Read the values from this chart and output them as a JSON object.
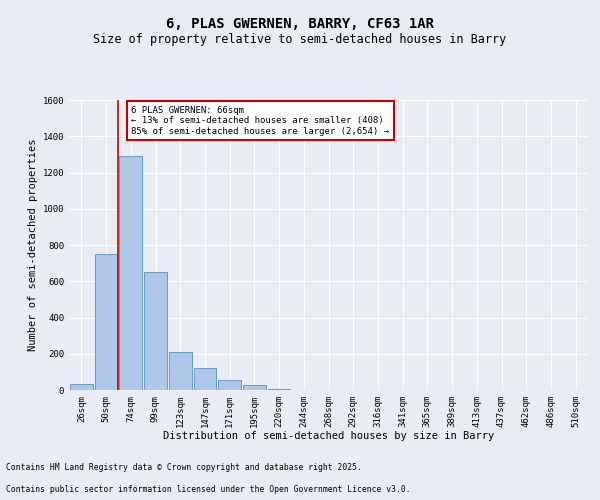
{
  "title": "6, PLAS GWERNEN, BARRY, CF63 1AR",
  "subtitle": "Size of property relative to semi-detached houses in Barry",
  "xlabel": "Distribution of semi-detached houses by size in Barry",
  "ylabel": "Number of semi-detached properties",
  "categories": [
    "26sqm",
    "50sqm",
    "74sqm",
    "99sqm",
    "123sqm",
    "147sqm",
    "171sqm",
    "195sqm",
    "220sqm",
    "244sqm",
    "268sqm",
    "292sqm",
    "316sqm",
    "341sqm",
    "365sqm",
    "389sqm",
    "413sqm",
    "437sqm",
    "462sqm",
    "486sqm",
    "510sqm"
  ],
  "values": [
    35,
    750,
    1290,
    650,
    210,
    120,
    55,
    25,
    5,
    0,
    0,
    0,
    0,
    0,
    0,
    0,
    0,
    0,
    0,
    0,
    0
  ],
  "bar_color": "#aec6e8",
  "bar_edge_color": "#5a8fc0",
  "vline_x_index": 2,
  "vline_color": "#cc0000",
  "annotation_title": "6 PLAS GWERNEN: 66sqm",
  "annotation_line1": "← 13% of semi-detached houses are smaller (408)",
  "annotation_line2": "85% of semi-detached houses are larger (2,654) →",
  "annotation_box_color": "#cc0000",
  "ylim": [
    0,
    1600
  ],
  "yticks": [
    0,
    200,
    400,
    600,
    800,
    1000,
    1200,
    1400,
    1600
  ],
  "footer_line1": "Contains HM Land Registry data © Crown copyright and database right 2025.",
  "footer_line2": "Contains public sector information licensed under the Open Government Licence v3.0.",
  "bg_color": "#eaecf4",
  "plot_bg_color": "#eaecf4",
  "title_fontsize": 10,
  "subtitle_fontsize": 8.5,
  "ylabel_fontsize": 7.5,
  "xlabel_fontsize": 7.5,
  "tick_fontsize": 6.5,
  "annotation_fontsize": 6.5,
  "footer_fontsize": 5.8
}
